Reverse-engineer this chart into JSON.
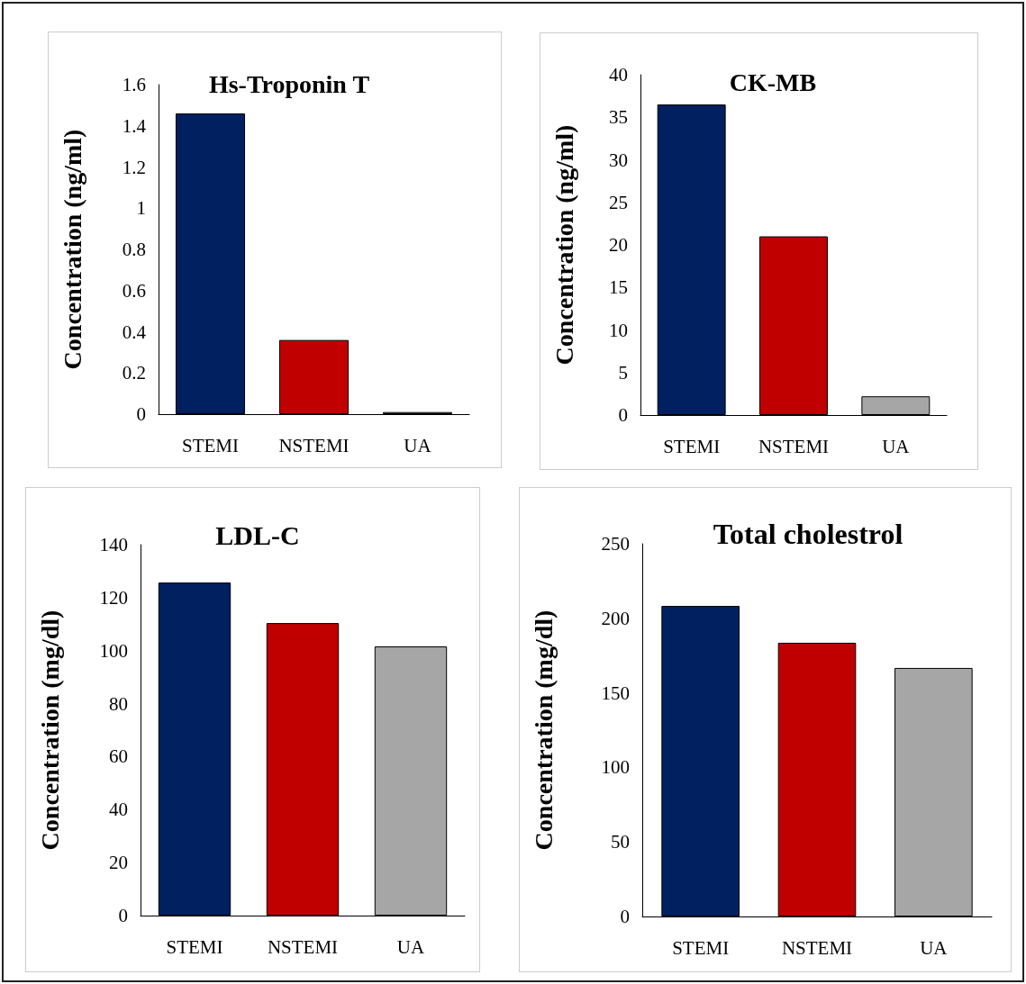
{
  "chart_data": [
    {
      "type": "bar",
      "title": "Hs-Troponin T",
      "ylabel": "Concentration (ng/ml)",
      "categories": [
        "STEMI",
        "NSTEMI",
        "UA"
      ],
      "values": [
        1.46,
        0.36,
        0.01
      ],
      "colors": [
        "#002060",
        "#c00000",
        "#a6a6a6"
      ],
      "ylim": [
        0,
        1.6
      ],
      "yticks": [
        0,
        {
          "value": 0.2,
          "label": "0.2"
        },
        {
          "value": 0.4,
          "label": "0.4"
        },
        {
          "value": 0.6,
          "label": "0.6"
        },
        {
          "value": 0.8,
          "label": "0.8"
        },
        1,
        {
          "value": 1.2,
          "label": "1.2"
        },
        {
          "value": 1.4,
          "label": "1.4"
        },
        {
          "value": 1.6,
          "label": "1.6"
        }
      ]
    },
    {
      "type": "bar",
      "title": "CK-MB",
      "ylabel": "Concentration (ng/ml)",
      "categories": [
        "STEMI",
        "NSTEMI",
        "UA"
      ],
      "values": [
        36.5,
        21,
        2.2
      ],
      "colors": [
        "#002060",
        "#c00000",
        "#a6a6a6"
      ],
      "ylim": [
        0,
        40
      ],
      "yticks": [
        0,
        5,
        10,
        15,
        20,
        25,
        30,
        35,
        40
      ]
    },
    {
      "type": "bar",
      "title": "LDL-C",
      "ylabel": "Concentration (mg/dl)",
      "categories": [
        "STEMI",
        "NSTEMI",
        "UA"
      ],
      "values": [
        125.7,
        110.4,
        101.6
      ],
      "colors": [
        "#002060",
        "#c00000",
        "#a6a6a6"
      ],
      "ylim": [
        0,
        140
      ],
      "yticks": [
        0,
        20,
        40,
        60,
        80,
        100,
        120,
        140
      ]
    },
    {
      "type": "bar",
      "title": "Total cholestrol",
      "ylabel": "Concentration (mg/dl)",
      "categories": [
        "STEMI",
        "NSTEMI",
        "UA"
      ],
      "values": [
        208.3,
        183.6,
        166.7
      ],
      "colors": [
        "#002060",
        "#c00000",
        "#a6a6a6"
      ],
      "ylim": [
        0,
        250
      ],
      "yticks": [
        0,
        50,
        100,
        150,
        200,
        250
      ]
    }
  ]
}
